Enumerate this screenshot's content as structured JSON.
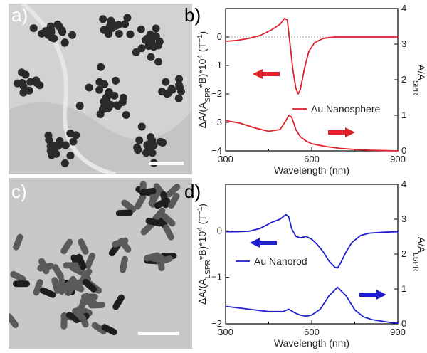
{
  "panels": {
    "a": {
      "letter": "a)",
      "particle": "sphere"
    },
    "c": {
      "letter": "c)",
      "particle": "rod"
    }
  },
  "chart_data": [
    {
      "panel": "b)",
      "type": "line",
      "xlabel": "Wavelength (nm)",
      "ylabel_left": "ΔA/(A_SPR*B)*10^4 (T^-1)",
      "ylabel_right": "A/A_SPR",
      "xlim": [
        300,
        900
      ],
      "xticks": [
        300,
        600,
        900
      ],
      "ylim_left": [
        -4,
        1
      ],
      "yticks_left": [
        -4,
        -3,
        -2,
        -1,
        0
      ],
      "ylim_right": [
        0,
        4
      ],
      "yticks_right": [
        0,
        1,
        2,
        3,
        4
      ],
      "zero_line": true,
      "color": "#e0202a",
      "legend": "Au Nanosphere",
      "series": [
        {
          "axis": "left",
          "x": [
            300,
            340,
            380,
            420,
            460,
            490,
            505,
            515,
            525,
            535,
            545,
            553,
            560,
            575,
            590,
            610,
            640,
            680,
            720,
            760,
            800,
            850,
            900
          ],
          "y": [
            -0.15,
            -0.12,
            -0.05,
            0.05,
            0.25,
            0.45,
            0.65,
            0.6,
            -0.3,
            -1.2,
            -1.8,
            -2.0,
            -1.85,
            -1.1,
            -0.5,
            -0.2,
            -0.05,
            0.0,
            0.0,
            0.0,
            0.0,
            0.0,
            0.0
          ]
        },
        {
          "axis": "right",
          "x": [
            300,
            350,
            400,
            450,
            490,
            510,
            520,
            530,
            545,
            560,
            580,
            600,
            650,
            700,
            750,
            800,
            850,
            900
          ],
          "y": [
            0.85,
            0.78,
            0.65,
            0.55,
            0.6,
            0.85,
            1.0,
            0.95,
            0.6,
            0.4,
            0.28,
            0.2,
            0.12,
            0.07,
            0.04,
            0.02,
            0.01,
            0.0
          ]
        }
      ],
      "arrows": [
        {
          "direction": "left",
          "points_to": "left-axis"
        },
        {
          "direction": "right",
          "points_to": "right-axis"
        }
      ]
    },
    {
      "panel": "d)",
      "type": "line",
      "xlabel": "Wavelength (nm)",
      "ylabel_left": "ΔA/(A_LSPR*B)*10^4 (T^-1)",
      "ylabel_right": "A/A_LSPR",
      "xlim": [
        300,
        900
      ],
      "xticks": [
        300,
        600,
        900
      ],
      "ylim_left": [
        -2,
        1
      ],
      "yticks_left": [
        -2,
        -1,
        0
      ],
      "ylim_right": [
        0,
        4
      ],
      "yticks_right": [
        0,
        1,
        2,
        3,
        4
      ],
      "zero_line": false,
      "color": "#1f1fd0",
      "legend": "Au Nanorod",
      "series": [
        {
          "axis": "left",
          "x": [
            300,
            340,
            380,
            420,
            460,
            490,
            510,
            520,
            530,
            545,
            560,
            580,
            600,
            620,
            640,
            660,
            680,
            690,
            700,
            720,
            740,
            770,
            800,
            850,
            900
          ],
          "y": [
            -0.02,
            -0.02,
            -0.01,
            0.05,
            0.18,
            0.25,
            0.35,
            0.3,
            0.05,
            -0.12,
            -0.15,
            -0.12,
            -0.18,
            -0.3,
            -0.45,
            -0.65,
            -0.78,
            -0.8,
            -0.7,
            -0.45,
            -0.25,
            -0.1,
            -0.05,
            -0.03,
            -0.02
          ]
        },
        {
          "axis": "right",
          "x": [
            300,
            350,
            400,
            450,
            500,
            520,
            540,
            560,
            580,
            600,
            630,
            660,
            690,
            720,
            750,
            780,
            810,
            850,
            880,
            900
          ],
          "y": [
            0.5,
            0.45,
            0.4,
            0.35,
            0.35,
            0.42,
            0.32,
            0.25,
            0.22,
            0.25,
            0.42,
            0.8,
            1.05,
            0.8,
            0.4,
            0.2,
            0.12,
            0.07,
            0.03,
            0.02
          ]
        }
      ],
      "arrows": [
        {
          "direction": "left",
          "points_to": "left-axis"
        },
        {
          "direction": "right",
          "points_to": "right-axis"
        }
      ]
    }
  ]
}
